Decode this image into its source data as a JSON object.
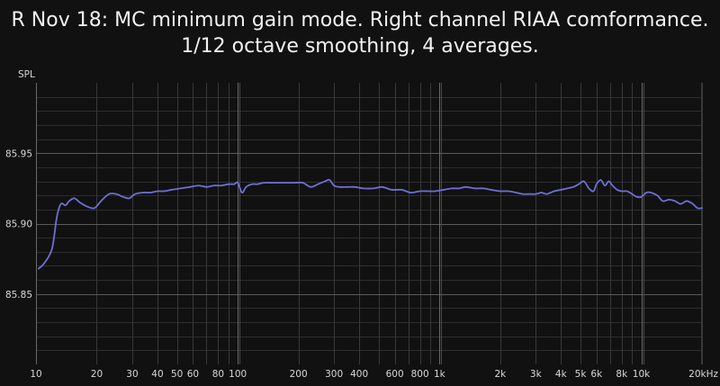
{
  "chart_data": {
    "type": "line",
    "title": [
      "R Nov 18: MC minimum gain mode. Right channel RIAA comformance.",
      "1/12 octave smoothing, 4 averages."
    ],
    "ylabel": "SPL",
    "xlabel": "",
    "xscale": "log",
    "xlim": [
      10,
      20000
    ],
    "ylim": [
      85.8,
      86.0
    ],
    "grid": true,
    "line_color": "#6e6ed6",
    "x_ticks": [
      {
        "value": 10,
        "label": "10"
      },
      {
        "value": 20,
        "label": "20"
      },
      {
        "value": 30,
        "label": "30"
      },
      {
        "value": 40,
        "label": "40"
      },
      {
        "value": 50,
        "label": "50"
      },
      {
        "value": 60,
        "label": "60"
      },
      {
        "value": 80,
        "label": "80"
      },
      {
        "value": 100,
        "label": "100"
      },
      {
        "value": 200,
        "label": "200"
      },
      {
        "value": 300,
        "label": "300"
      },
      {
        "value": 400,
        "label": "400"
      },
      {
        "value": 600,
        "label": "600"
      },
      {
        "value": 800,
        "label": "800"
      },
      {
        "value": 1000,
        "label": "1k"
      },
      {
        "value": 2000,
        "label": "2k"
      },
      {
        "value": 3000,
        "label": "3k"
      },
      {
        "value": 4000,
        "label": "4k"
      },
      {
        "value": 5000,
        "label": "5k"
      },
      {
        "value": 6000,
        "label": "6k"
      },
      {
        "value": 8000,
        "label": "8k"
      },
      {
        "value": 10000,
        "label": "10k"
      },
      {
        "value": 20000,
        "label": "20kHz"
      }
    ],
    "y_ticks": [
      {
        "value": 85.85,
        "label": "85.85"
      },
      {
        "value": 85.9,
        "label": "85.90"
      },
      {
        "value": 85.95,
        "label": "85.95"
      }
    ],
    "series": [
      {
        "x": [
          10.3,
          11,
          12,
          12.7,
          13.3,
          14,
          14.6,
          15.5,
          16.5,
          18,
          19.5,
          21,
          23,
          25,
          27,
          29,
          31,
          34,
          37,
          40,
          43,
          47,
          52,
          58,
          64,
          70,
          76,
          83,
          90,
          96,
          100,
          105,
          110,
          118,
          125,
          135,
          150,
          170,
          190,
          210,
          230,
          250,
          270,
          285,
          300,
          320,
          350,
          380,
          420,
          470,
          520,
          580,
          650,
          720,
          800,
          880,
          950,
          1050,
          1150,
          1250,
          1350,
          1500,
          1650,
          1800,
          2000,
          2200,
          2400,
          2600,
          2800,
          3000,
          3200,
          3400,
          3700,
          4000,
          4300,
          4600,
          4900,
          5200,
          5500,
          5800,
          6000,
          6300,
          6600,
          6900,
          7200,
          7600,
          8000,
          8500,
          9000,
          9500,
          10000,
          10600,
          11200,
          12000,
          12800,
          13700,
          14700,
          15700,
          16800,
          18000,
          19000,
          20000
        ],
        "y": [
          85.868,
          85.872,
          85.882,
          85.905,
          85.914,
          85.913,
          85.916,
          85.918,
          85.915,
          85.912,
          85.911,
          85.916,
          85.921,
          85.921,
          85.919,
          85.918,
          85.921,
          85.922,
          85.922,
          85.923,
          85.923,
          85.924,
          85.925,
          85.926,
          85.927,
          85.926,
          85.927,
          85.927,
          85.928,
          85.928,
          85.929,
          85.922,
          85.926,
          85.928,
          85.928,
          85.929,
          85.929,
          85.929,
          85.929,
          85.929,
          85.926,
          85.928,
          85.93,
          85.931,
          85.927,
          85.926,
          85.926,
          85.926,
          85.925,
          85.925,
          85.926,
          85.924,
          85.924,
          85.922,
          85.923,
          85.923,
          85.923,
          85.924,
          85.925,
          85.925,
          85.926,
          85.925,
          85.925,
          85.924,
          85.923,
          85.923,
          85.922,
          85.921,
          85.921,
          85.921,
          85.922,
          85.921,
          85.923,
          85.924,
          85.925,
          85.926,
          85.928,
          85.93,
          85.925,
          85.923,
          85.928,
          85.931,
          85.927,
          85.93,
          85.927,
          85.924,
          85.923,
          85.923,
          85.921,
          85.919,
          85.919,
          85.922,
          85.922,
          85.92,
          85.916,
          85.917,
          85.916,
          85.914,
          85.916,
          85.914,
          85.911,
          85.911
        ]
      }
    ]
  }
}
